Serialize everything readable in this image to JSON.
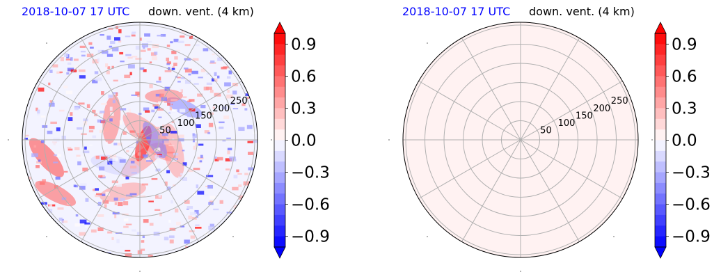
{
  "colors": {
    "title_left": "#0000ff",
    "title_right": "#000000",
    "grid": "#b0b0b0",
    "outline": "#000000",
    "cmap": [
      "#0000ff",
      "#ffffff",
      "#ff0000"
    ]
  },
  "chart_data": [
    {
      "type": "heatmap",
      "projection": "polar",
      "title_left": "2018-10-07 17 UTC",
      "title_right": "down. vent. (4 km)",
      "radial_ticks": [
        "50",
        "100",
        "150",
        "200",
        "250"
      ],
      "grid": true,
      "field": "noisy",
      "colorbar": {
        "ticks": [
          "0.9",
          "0.6",
          "0.3",
          "0.0",
          "−0.3",
          "−0.6",
          "−0.9"
        ],
        "vmin": -1.0,
        "vmax": 1.0,
        "extend": "both",
        "cmap": "bwr"
      }
    },
    {
      "type": "heatmap",
      "projection": "polar",
      "title_left": "2018-10-07 17 UTC",
      "title_right": "down. vent. (4 km)",
      "radial_ticks": [
        "50",
        "100",
        "150",
        "200",
        "250"
      ],
      "grid": true,
      "field": "uniform",
      "fill_value": 0.05,
      "colorbar": {
        "ticks": [
          "0.9",
          "0.6",
          "0.3",
          "0.0",
          "−0.3",
          "−0.6",
          "−0.9"
        ],
        "vmin": -1.0,
        "vmax": 1.0,
        "extend": "both",
        "cmap": "bwr"
      }
    }
  ]
}
